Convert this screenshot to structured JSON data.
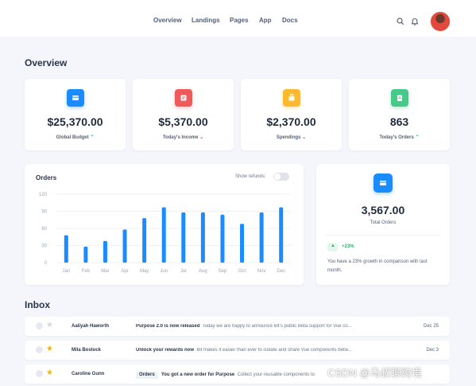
{
  "nav": {
    "items": [
      "Overview",
      "Landings",
      "Pages",
      "App",
      "Docs"
    ],
    "search_icon": "search-icon",
    "bell_icon": "bell-icon"
  },
  "overview": {
    "title": "Overview",
    "stats": [
      {
        "value": "$25,370.00",
        "label": "Global Budget",
        "trend": "up",
        "icon": "wallet-icon",
        "color": "#1a8cff"
      },
      {
        "value": "$5,370.00",
        "label": "Today's Income",
        "trend": "down",
        "icon": "receipt-icon",
        "color": "#ef5b5b"
      },
      {
        "value": "$2,370.00",
        "label": "Spendings",
        "trend": "down",
        "icon": "bag-icon",
        "color": "#ffb92e"
      },
      {
        "value": "863",
        "label": "Today's Orders",
        "trend": "up",
        "icon": "clipboard-icon",
        "color": "#47c98a"
      }
    ]
  },
  "orders_chart": {
    "title": "Orders",
    "refunds_label": "Show refunds:",
    "refunds_on": false
  },
  "chart_data": {
    "type": "bar",
    "title": "Orders",
    "categories": [
      "Jan",
      "Feb",
      "Mar",
      "Apr",
      "May",
      "Jun",
      "Jul",
      "Aug",
      "Sep",
      "Oct",
      "Nov",
      "Dec"
    ],
    "values": [
      48,
      28,
      38,
      58,
      78,
      97,
      88,
      88,
      84,
      68,
      88,
      97
    ],
    "yticks": [
      0,
      30,
      60,
      90,
      120
    ],
    "ylim": [
      0,
      120
    ],
    "grid": true,
    "color": "#1a8cff"
  },
  "total_orders": {
    "icon": "wallet-icon",
    "value": "3,567.00",
    "label": "Total Orders",
    "growth": "+23%",
    "growth_text": "You have a 23% growth in comparison with last month."
  },
  "inbox": {
    "title": "Inbox",
    "rows": [
      {
        "sender": "Aaliyah Haworth",
        "tag": "",
        "subject": "Purpose 2.0 is now released",
        "body": "Today we are happy to announce Bit's public Beta support for Vue co...",
        "date": "Dec 25",
        "starred": false
      },
      {
        "sender": "Mila Bostock",
        "tag": "",
        "subject": "Unlock your rewards now",
        "body": "Bit makes it easier than ever to isolate and share Vue components betw...",
        "date": "Dec 3",
        "starred": true
      },
      {
        "sender": "Caroline Gunn",
        "tag": "Orders",
        "subject": "You got a new order for Purpose",
        "body": "Collect your reusable components to",
        "date": "",
        "starred": true
      }
    ]
  },
  "watermark": "CSDN @马叔聊跨境"
}
